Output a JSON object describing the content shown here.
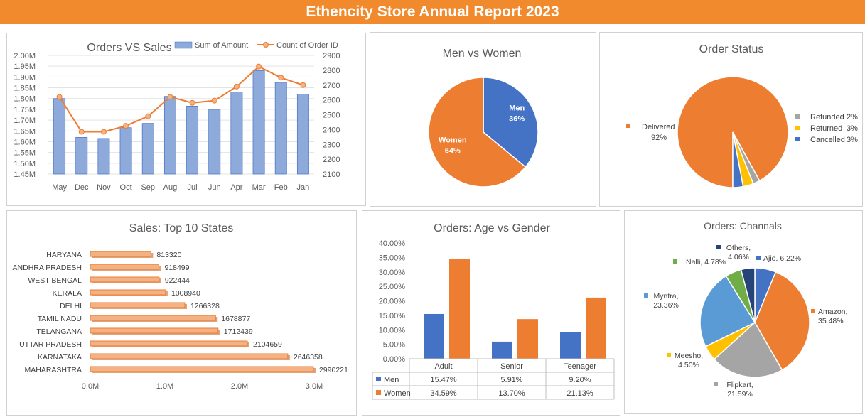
{
  "header": {
    "title": "Ethencity Store Annual Report 2023"
  },
  "chart_data": [
    {
      "type": "bar",
      "title": "Orders VS Sales",
      "categories": [
        "May",
        "Dec",
        "Nov",
        "Oct",
        "Sep",
        "Aug",
        "Jul",
        "Jun",
        "Apr",
        "Mar",
        "Feb",
        "Jan"
      ],
      "series": [
        {
          "name": "Sum of Amount",
          "type": "bar",
          "axis": "left",
          "color": "#8eaadb",
          "values": [
            1.8,
            1.62,
            1.615,
            1.665,
            1.685,
            1.81,
            1.765,
            1.75,
            1.83,
            1.93,
            1.875,
            1.82
          ]
        },
        {
          "name": "Count of Order ID",
          "type": "line",
          "axis": "right",
          "color": "#ed7d31",
          "values": [
            2620,
            2385,
            2385,
            2425,
            2490,
            2620,
            2580,
            2595,
            2690,
            2825,
            2750,
            2700
          ]
        }
      ],
      "ylim_left": [
        1.45,
        2.0
      ],
      "yticks_left": [
        "1.45M",
        "1.50M",
        "1.55M",
        "1.60M",
        "1.65M",
        "1.70M",
        "1.75M",
        "1.80M",
        "1.85M",
        "1.90M",
        "1.95M",
        "2.00M"
      ],
      "ylim_right": [
        2100,
        2900
      ],
      "yticks_right": [
        "2100",
        "2200",
        "2300",
        "2400",
        "2500",
        "2600",
        "2700",
        "2800",
        "2900"
      ],
      "legend": "top"
    },
    {
      "type": "pie",
      "title": "Men vs Women",
      "slices": [
        {
          "label": "Men",
          "value": 36,
          "text": "36%",
          "color": "#4472c4"
        },
        {
          "label": "Women",
          "value": 64,
          "text": "64%",
          "color": "#ed7d31"
        }
      ]
    },
    {
      "type": "pie",
      "title": "Order Status",
      "slices": [
        {
          "label": "Delivered",
          "value": 92,
          "text": "92%",
          "color": "#ed7d31"
        },
        {
          "label": "Refunded",
          "value": 2,
          "text": "2%",
          "color": "#a5a5a5"
        },
        {
          "label": "Returned",
          "value": 3,
          "text": "3%",
          "color": "#ffc000"
        },
        {
          "label": "Cancelled",
          "value": 3,
          "text": "3%",
          "color": "#4472c4"
        }
      ],
      "legend": "labels"
    },
    {
      "type": "bar",
      "orientation": "horizontal",
      "title": "Sales: Top 10 States",
      "categories": [
        "HARYANA",
        "ANDHRA PRADESH",
        "WEST BENGAL",
        "KERALA",
        "DELHI",
        "TAMIL NADU",
        "TELANGANA",
        "UTTAR PRADESH",
        "KARNATAKA",
        "MAHARASHTRA"
      ],
      "values": [
        813320,
        918499,
        922444,
        1008940,
        1266328,
        1678877,
        1712439,
        2104659,
        2646358,
        2990221
      ],
      "xlim": [
        0,
        3000000
      ],
      "xticks": [
        "0.0M",
        "1.0M",
        "2.0M",
        "3.0M"
      ],
      "color": "#f4b183"
    },
    {
      "type": "bar",
      "title": "Orders: Age vs Gender",
      "categories": [
        "Adult",
        "Senior",
        "Teenager"
      ],
      "series": [
        {
          "name": "Men",
          "color": "#4472c4",
          "values": [
            15.47,
            5.91,
            9.2
          ],
          "labels": [
            "15.47%",
            "5.91%",
            "9.20%"
          ]
        },
        {
          "name": "Women",
          "color": "#ed7d31",
          "values": [
            34.59,
            13.7,
            21.13
          ],
          "labels": [
            "34.59%",
            "13.70%",
            "21.13%"
          ]
        }
      ],
      "ylim": [
        0,
        40
      ],
      "yticks": [
        "0.00%",
        "5.00%",
        "10.00%",
        "15.00%",
        "20.00%",
        "25.00%",
        "30.00%",
        "35.00%",
        "40.00%"
      ],
      "data_table": true
    },
    {
      "type": "pie",
      "title": "Orders: Channals",
      "slices": [
        {
          "label": "Ajio",
          "value": 6.22,
          "text": "Ajio, 6.22%",
          "color": "#4472c4"
        },
        {
          "label": "Amazon",
          "value": 35.48,
          "text": "Amazon, 35.48%",
          "color": "#ed7d31"
        },
        {
          "label": "Flipkart",
          "value": 21.59,
          "text": "Flipkart, 21.59%",
          "color": "#a5a5a5"
        },
        {
          "label": "Meesho",
          "value": 4.5,
          "text": "Meesho, 4.50%",
          "color": "#ffc000"
        },
        {
          "label": "Myntra",
          "value": 23.36,
          "text": "Myntra, 23.36%",
          "color": "#5b9bd5"
        },
        {
          "label": "Nalli",
          "value": 4.78,
          "text": "Nalli, 4.78%",
          "color": "#70ad47"
        },
        {
          "label": "Others",
          "value": 4.06,
          "text": "Others, 4.06%",
          "color": "#264478"
        }
      ]
    }
  ]
}
